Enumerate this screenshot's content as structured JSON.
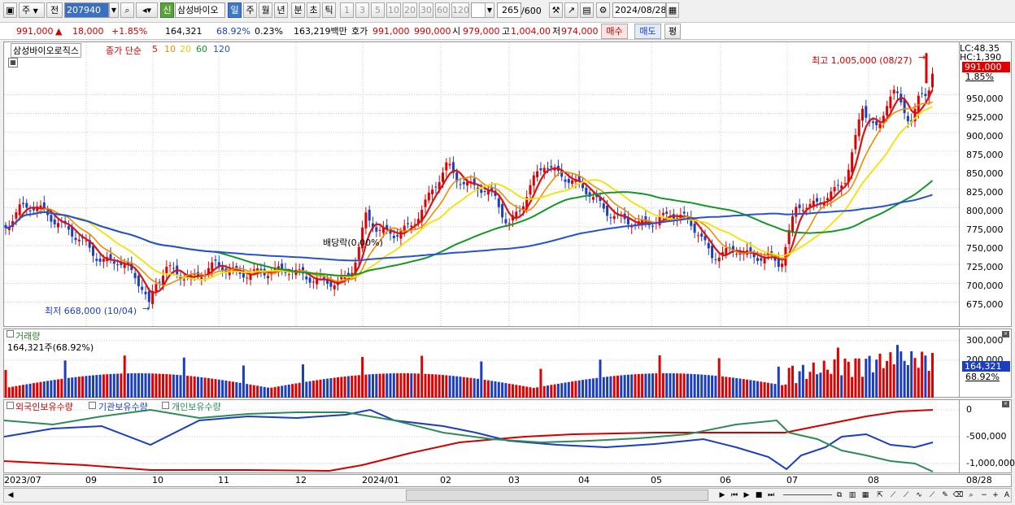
{
  "toolbar": {
    "jong": "주",
    "jeon": "전",
    "code": "207940",
    "sin": "신",
    "name": "삼성바이오",
    "periods": [
      "일",
      "주",
      "월",
      "년",
      "분",
      "초",
      "틱"
    ],
    "nums": [
      "1",
      "3",
      "5",
      "10",
      "20",
      "30",
      "60",
      "120"
    ],
    "count": "265",
    "count_max": "/600",
    "date": "2024/08/28"
  },
  "quote": {
    "price": "991,000",
    "arrow": "▲",
    "change": "18,000",
    "rate": "+1.85%",
    "volume": "164,321",
    "vol_rate": "68.92%",
    "turnover": "0.23%",
    "amount": "163,219백만",
    "hoga_label": "호가",
    "ask": "991,000",
    "bid": "990,000",
    "open_label": "시",
    "open": "979,000",
    "high_label": "고",
    "high": "1,004,00",
    "low_label": "저",
    "low": "974,000",
    "buy": "매수",
    "sell": "매도",
    "eval": "평"
  },
  "price_panel": {
    "name": "삼성바이오로직스",
    "ma_label": "종가 단순",
    "ma": [
      "5",
      "10",
      "20",
      "60",
      "120"
    ],
    "ma_colors": [
      "#dd1111",
      "#f08c00",
      "#f5e100",
      "#149628",
      "#2850d2"
    ],
    "max_note": "최고 1,005,000 (08/27)",
    "min_note": "최저 668,000 (10/04)",
    "div_note": "배당락(0.00%)",
    "lc": "LC:48.35",
    "hc": "HC:1,390",
    "cur_price": "991,000",
    "cur_rate": "1.85%"
  },
  "volume_panel": {
    "title": "거래량",
    "value": "164,321주(68.92%)",
    "cur": "164,321",
    "cur_rate": "68.92%"
  },
  "holding_panel": {
    "items": [
      "외국인보유수량",
      "기관보유수량",
      "개인보유수량"
    ],
    "colors": [
      "#d00000",
      "#1b3ec0",
      "#2e8b57"
    ]
  },
  "axes": {
    "price_ticks": [
      "950,000",
      "925,000",
      "900,000",
      "875,000",
      "850,000",
      "825,000",
      "800,000",
      "775,000",
      "750,000",
      "725,000",
      "700,000",
      "675,000"
    ],
    "volume_ticks": [
      "300,000",
      "200,000"
    ],
    "holding_ticks": [
      "0",
      "-500,000",
      "-1,000,000"
    ],
    "x_labels": [
      "2023/07",
      "09",
      "10",
      "11",
      "12",
      "2024/01",
      "02",
      "03",
      "04",
      "05",
      "06",
      "07",
      "08",
      "08/28"
    ]
  }
}
